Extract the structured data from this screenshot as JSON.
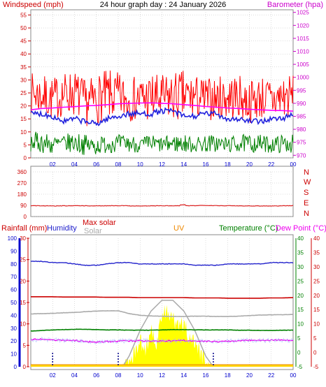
{
  "title": "24 hour graph day : 24 January 2026",
  "time_ticks": [
    "02",
    "04",
    "06",
    "08",
    "10",
    "12",
    "14",
    "16",
    "18",
    "20",
    "22",
    "00"
  ],
  "colors": {
    "wind": "#ff0000",
    "gust_band": "#ff0000",
    "windspeed_line": "#2222dd",
    "avg_wind": "#008000",
    "barometer": "#ff00ff",
    "direction": "#dd2222",
    "humidity": "#2222cc",
    "rainfall": "#cc0000",
    "max_solar": "#cc0000",
    "solar": "#aaaaaa",
    "uv": "#ee8800",
    "temperature": "#008000",
    "dew_point": "#ee00ee",
    "axis_red": "#cc0000",
    "axis_blue": "#0000cc",
    "axis_green": "#008000",
    "axis_magenta": "#cc00cc",
    "grid": "#bbbbbb",
    "solar_fill": "#ffff00",
    "uv_base": "#ffd700"
  },
  "chart_data": [
    {
      "type": "line",
      "panel": "wind-barometer",
      "left_axis_label": "Windspeed (mph)",
      "right_axis_label": "Barometer (hpa)",
      "left_ylim": [
        0,
        57
      ],
      "left_ticks": [
        0,
        5,
        10,
        15,
        20,
        25,
        30,
        35,
        40,
        45,
        50,
        55
      ],
      "right_ylim": [
        969,
        1026
      ],
      "right_ticks": [
        970,
        975,
        980,
        985,
        990,
        995,
        1000,
        1005,
        1010,
        1015,
        1020,
        1025
      ],
      "x": [
        0,
        1,
        2,
        3,
        4,
        5,
        6,
        7,
        8,
        9,
        10,
        11,
        12,
        13,
        14,
        15,
        16,
        17,
        18,
        19,
        20,
        21,
        22,
        23,
        24
      ],
      "series": [
        {
          "key": "gust_high",
          "values": [
            33,
            32,
            31,
            33,
            34,
            30,
            32,
            34,
            33,
            31,
            32,
            33,
            32,
            33,
            34,
            32,
            31,
            31,
            33,
            32,
            30,
            32,
            31,
            33,
            32
          ]
        },
        {
          "key": "gust_low",
          "values": [
            17,
            16,
            14,
            16,
            16,
            12,
            13,
            14,
            14,
            14,
            14,
            13,
            13,
            14,
            13,
            15,
            14,
            15,
            14,
            15,
            13,
            15,
            13,
            14,
            16
          ]
        },
        {
          "key": "windspeed",
          "values": [
            17,
            17,
            16,
            14,
            15,
            14,
            13,
            15,
            16,
            17,
            17,
            17,
            18,
            18,
            16,
            16,
            17,
            17,
            15,
            15,
            14,
            14,
            15,
            15,
            17
          ]
        },
        {
          "key": "avg_high",
          "values": [
            10,
            10,
            9,
            9,
            10,
            9,
            8,
            9,
            9,
            9,
            8,
            9,
            8,
            9,
            9,
            8,
            9,
            9,
            8,
            9,
            9,
            9,
            8,
            9,
            9
          ]
        },
        {
          "key": "avg_low",
          "values": [
            2,
            2,
            1,
            2,
            2,
            1,
            1,
            2,
            2,
            2,
            2,
            2,
            2,
            2,
            2,
            2,
            2,
            2,
            2,
            2,
            2,
            2,
            2,
            2,
            2
          ]
        },
        {
          "key": "barometer",
          "values": [
            987.5,
            988.0,
            988.2,
            988.5,
            988.7,
            989.0,
            989.2,
            989.5,
            989.8,
            990.0,
            990.1,
            990.2,
            990.0,
            989.8,
            989.5,
            989.2,
            988.8,
            988.5,
            988.2,
            988.0,
            987.7,
            987.5,
            987.3,
            987.2,
            987.0
          ]
        }
      ]
    },
    {
      "type": "line",
      "panel": "wind-direction",
      "left_ticks": [
        0,
        90,
        180,
        270,
        360
      ],
      "left_ylim": [
        0,
        360
      ],
      "right_labels": [
        "N",
        "W",
        "S",
        "E",
        "N"
      ],
      "x": [
        0,
        2,
        4,
        6,
        8,
        10,
        12,
        14,
        16,
        18,
        20,
        22,
        24
      ],
      "series": [
        {
          "key": "direction",
          "values": [
            88,
            85,
            87,
            86,
            88,
            85,
            87,
            86,
            90,
            87,
            86,
            85,
            88
          ]
        }
      ]
    },
    {
      "type": "line",
      "panel": "rain-humidity-solar-temp",
      "labels": {
        "rainfall": "Rainfall (mm)",
        "humidity": "Humidity",
        "max_solar": "Max solar",
        "solar": "Solar",
        "uv": "UV",
        "temperature": "Temperature (°C)",
        "dew_point": "Dew Point (°C)"
      },
      "humidity_ylim": [
        0,
        100
      ],
      "humidity_ticks": [
        0,
        10,
        20,
        30,
        40,
        50,
        60,
        70,
        80,
        90,
        100
      ],
      "rain_ylim": [
        0,
        30
      ],
      "rain_ticks": [
        0,
        5,
        10,
        15,
        20,
        25,
        30
      ],
      "temp_ylim": [
        -5,
        40
      ],
      "temp_ticks": [
        -5,
        0,
        5,
        10,
        15,
        20,
        25,
        30,
        35,
        40
      ],
      "x": [
        0,
        1,
        2,
        3,
        4,
        5,
        6,
        7,
        8,
        9,
        10,
        11,
        12,
        13,
        14,
        15,
        16,
        17,
        18,
        19,
        20,
        21,
        22,
        23,
        24
      ],
      "series": [
        {
          "key": "humidity",
          "values": [
            82,
            82,
            81,
            81,
            80,
            79,
            79,
            80,
            81,
            81,
            80,
            80,
            80,
            80,
            80,
            79,
            79,
            79,
            80,
            80,
            80,
            80,
            81,
            81,
            81
          ]
        },
        {
          "key": "max_solar_line",
          "values": [
            19.5,
            19.5,
            19.5,
            19.4,
            19.4,
            19.4,
            19.4,
            19.3,
            19.3,
            19.3,
            19.2,
            19.2,
            19.2,
            19.2,
            19.2,
            19.1,
            19.1,
            19.1,
            19.0,
            19.0,
            19.0,
            19.0,
            19.1,
            19.1,
            19.2
          ]
        },
        {
          "key": "solar_line",
          "values": [
            13.5,
            13.6,
            13.7,
            13.9,
            14.0,
            14.3,
            14.5,
            14.6,
            14.6,
            13.6,
            13.0,
            12.8,
            12.7,
            12.6,
            12.6,
            12.7,
            12.7,
            12.6,
            12.6,
            12.7,
            12.9,
            13.1,
            13.2,
            13.2,
            13.3
          ]
        },
        {
          "key": "temperature",
          "values": [
            7.5,
            7.7,
            7.9,
            8.0,
            8.1,
            8.1,
            8.0,
            7.9,
            7.9,
            7.8,
            7.8,
            7.8,
            7.9,
            8.0,
            8.0,
            7.9,
            7.9,
            7.9,
            7.9,
            7.8,
            7.8,
            7.7,
            7.7,
            7.8,
            7.8
          ]
        },
        {
          "key": "dew_point",
          "values": [
            4.5,
            4.6,
            4.4,
            4.3,
            4.2,
            3.9,
            3.6,
            3.8,
            4.0,
            4.1,
            4.1,
            4.0,
            4.0,
            4.1,
            4.2,
            4.0,
            3.9,
            3.8,
            4.0,
            4.1,
            4.3,
            4.2,
            4.3,
            4.3,
            4.3
          ]
        },
        {
          "key": "solar_fill",
          "x": [
            8.4,
            9,
            9.5,
            10,
            10.5,
            11,
            11.5,
            12,
            12.5,
            13,
            13.5,
            14,
            14.5,
            15,
            15.5,
            16,
            16.5
          ],
          "values": [
            0,
            2,
            3,
            6,
            4,
            9,
            5,
            12,
            13,
            11,
            9,
            10,
            7,
            6,
            3,
            2,
            0
          ]
        },
        {
          "key": "max_solar_arc",
          "x": [
            8.4,
            9,
            10,
            11,
            12,
            13,
            14,
            15,
            16,
            16.7
          ],
          "values": [
            0,
            2.5,
            8.5,
            13,
            15.5,
            15.5,
            13,
            8.5,
            2.5,
            0
          ]
        }
      ],
      "dotted_markers": [
        2,
        8,
        16.7
      ]
    }
  ]
}
